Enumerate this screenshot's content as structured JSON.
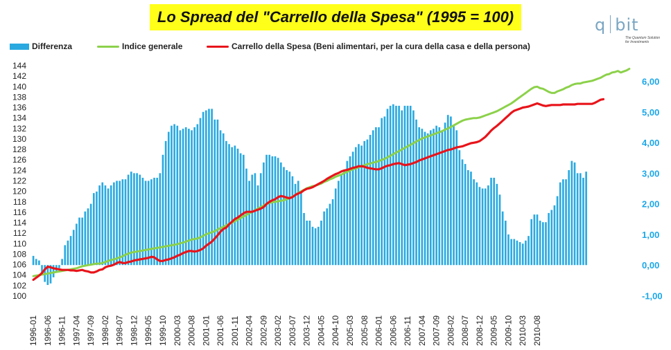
{
  "title": "Lo Spread del \"Carrello della Spesa\" (1995 = 100)",
  "logo": {
    "left": "q",
    "right": "bit",
    "tagline_1": "The Quantum Solution",
    "tagline_2": "for Investments"
  },
  "chart_data": {
    "type": "bar+line",
    "title": "Lo Spread del \"Carrello della Spesa\" (1995 = 100)",
    "legend": [
      {
        "name": "Differenza",
        "kind": "bar",
        "color": "#2aa9e0"
      },
      {
        "name": "Indice generale",
        "kind": "line",
        "color": "#8cd14a"
      },
      {
        "name": "Carrello della Spesa (Beni alimentari, per la cura della casa e della persona)",
        "kind": "line",
        "color": "#e8141a"
      }
    ],
    "legend_position": "top-left",
    "x_start": "1996-01",
    "x_end": "2011-01",
    "x_tick_labels": [
      "1996-01",
      "1996-06",
      "1996-11",
      "1997-04",
      "1997-09",
      "1998-02",
      "1998-07",
      "1998-12",
      "1999-05",
      "1999-10",
      "2000-03",
      "2000-08",
      "2001-01",
      "2001-06",
      "2001-11",
      "2002-04",
      "2002-09",
      "2003-02",
      "2003-07",
      "2003-12",
      "2004-05",
      "2004-10",
      "2005-03",
      "2005-08",
      "2006-01",
      "2006-06",
      "2006-11",
      "2007-04",
      "2007-09",
      "2008-02",
      "2008-07",
      "2008-12",
      "2009-05",
      "2009-10",
      "2010-03",
      "2010-08"
    ],
    "y_left": {
      "min": 100,
      "max": 144,
      "step": 2
    },
    "y_right": {
      "min": -1,
      "max": 6,
      "step": 1,
      "labels": [
        "-1,00",
        "0,00",
        "1,00",
        "2,00",
        "3,00",
        "4,00",
        "5,00",
        "6,00"
      ]
    },
    "grid": false,
    "indice_generale_monthly": [
      103.8,
      103.9,
      104.0,
      104.1,
      104.2,
      104.3,
      104.4,
      104.5,
      104.6,
      104.7,
      104.8,
      104.9,
      105.0,
      105.1,
      105.2,
      105.3,
      105.5,
      105.7,
      105.8,
      105.9,
      106.0,
      106.1,
      106.2,
      106.2,
      106.3,
      106.5,
      106.7,
      106.9,
      107.0,
      107.2,
      107.4,
      107.6,
      107.9,
      108.1,
      108.3,
      108.4,
      108.5,
      108.6,
      108.7,
      108.8,
      108.9,
      109.0,
      109.1,
      109.2,
      109.3,
      109.4,
      109.5,
      109.6,
      109.7,
      109.8,
      109.9,
      110.1,
      110.2,
      110.4,
      110.6,
      110.8,
      110.9,
      111.0,
      111.2,
      111.5,
      111.8,
      112.0,
      112.2,
      112.4,
      112.7,
      113.0,
      113.2,
      113.5,
      113.8,
      114.0,
      114.3,
      114.6,
      114.9,
      115.2,
      115.5,
      115.8,
      116.1,
      116.4,
      116.7,
      117.0,
      117.3,
      117.6,
      117.8,
      117.9,
      118.0,
      118.1,
      118.2,
      118.3,
      118.5,
      118.7,
      119.0,
      119.3,
      119.7,
      120.0,
      120.3,
      120.6,
      120.8,
      121.0,
      121.1,
      121.3,
      121.5,
      121.8,
      122.0,
      122.3,
      122.5,
      122.8,
      123.0,
      123.2,
      123.5,
      123.7,
      124.0,
      124.2,
      124.4,
      124.6,
      124.8,
      125.0,
      125.2,
      125.3,
      125.5,
      125.6,
      125.8,
      126.0,
      126.2,
      126.5,
      126.8,
      127.1,
      127.4,
      127.7,
      128.0,
      128.3,
      128.6,
      128.9,
      129.2,
      129.5,
      129.8,
      130.1,
      130.3,
      130.5,
      130.7,
      130.9,
      131.1,
      131.3,
      131.5,
      131.8,
      132.0,
      132.3,
      132.6,
      132.9,
      133.2,
      133.5,
      133.7,
      133.8,
      133.9,
      134.0,
      134.0,
      134.1,
      134.3,
      134.5,
      134.7,
      134.9,
      135.1,
      135.3,
      135.6,
      135.9,
      136.2,
      136.5,
      136.8,
      137.2,
      137.6,
      138.0,
      138.4,
      138.8,
      139.2,
      139.6,
      139.9,
      140.0,
      139.7,
      139.6,
      139.3,
      139.0,
      138.8,
      138.8,
      139.1,
      139.3,
      139.5,
      139.8,
      140.0,
      140.3,
      140.5,
      140.6,
      140.6,
      140.8,
      140.9,
      141.0,
      141.1,
      141.3,
      141.5,
      141.7,
      142.0,
      142.3,
      142.4,
      142.7,
      142.8,
      143.0,
      142.7,
      142.9,
      143.1,
      143.4
    ],
    "carrello_monthly": [
      103.1,
      103.5,
      103.9,
      104.4,
      105.1,
      105.6,
      105.5,
      105.3,
      105.2,
      105.1,
      105.0,
      105.0,
      105.0,
      104.9,
      104.9,
      104.8,
      104.9,
      105.0,
      104.8,
      104.7,
      104.5,
      104.5,
      104.7,
      105.0,
      105.1,
      105.5,
      105.7,
      105.8,
      106.0,
      106.3,
      106.5,
      106.3,
      106.3,
      106.5,
      106.6,
      106.8,
      106.9,
      107.0,
      107.1,
      107.2,
      107.3,
      107.5,
      107.4,
      107.0,
      106.7,
      106.7,
      106.9,
      107.0,
      107.2,
      107.4,
      107.7,
      107.9,
      108.2,
      108.4,
      108.6,
      108.6,
      108.5,
      108.6,
      108.8,
      109.1,
      109.6,
      110.0,
      110.4,
      111.0,
      111.6,
      112.3,
      112.8,
      113.1,
      113.7,
      114.2,
      114.7,
      115.0,
      115.4,
      115.8,
      116.1,
      116.1,
      116.1,
      116.3,
      116.5,
      116.7,
      117.0,
      117.6,
      118.0,
      118.3,
      118.5,
      118.9,
      119.1,
      119.0,
      118.8,
      118.7,
      118.9,
      119.3,
      119.6,
      119.8,
      120.2,
      120.5,
      120.6,
      120.8,
      121.1,
      121.4,
      121.7,
      122.0,
      122.4,
      122.7,
      123.0,
      123.3,
      123.5,
      123.8,
      124.0,
      124.1,
      124.3,
      124.5,
      124.6,
      124.8,
      124.8,
      124.7,
      124.5,
      124.4,
      124.3,
      124.2,
      124.2,
      124.4,
      124.7,
      124.9,
      125.0,
      125.2,
      125.3,
      125.4,
      125.2,
      125.0,
      125.1,
      125.2,
      125.4,
      125.6,
      125.9,
      126.1,
      126.3,
      126.5,
      126.7,
      126.9,
      127.1,
      127.3,
      127.5,
      127.7,
      127.9,
      128.0,
      128.2,
      128.4,
      128.5,
      128.6,
      128.8,
      129.0,
      129.2,
      129.3,
      129.4,
      129.6,
      130.0,
      130.4,
      131.0,
      131.6,
      132.1,
      132.5,
      133.0,
      133.5,
      134.0,
      134.5,
      135.0,
      135.4,
      135.6,
      135.8,
      136.0,
      136.1,
      136.2,
      136.4,
      136.6,
      136.8,
      136.6,
      136.4,
      136.3,
      136.4,
      136.5,
      136.5,
      136.5,
      136.5,
      136.6,
      136.6,
      136.6,
      136.6,
      136.6,
      136.7,
      136.7,
      136.7,
      136.7,
      136.7,
      136.7,
      136.9,
      137.2,
      137.5,
      137.6
    ],
    "differenza_monthly": [
      0.3,
      0.2,
      0.15,
      -0.3,
      -0.55,
      -0.65,
      -0.6,
      -0.4,
      -0.25,
      -0.1,
      0.2,
      0.65,
      0.8,
      0.95,
      1.15,
      1.35,
      1.55,
      1.55,
      1.75,
      1.85,
      2.0,
      2.35,
      2.4,
      2.6,
      2.7,
      2.6,
      2.5,
      2.6,
      2.7,
      2.75,
      2.75,
      2.8,
      2.8,
      2.95,
      3.05,
      3.0,
      3.0,
      2.95,
      2.85,
      2.75,
      2.75,
      2.8,
      2.85,
      2.85,
      3.0,
      3.6,
      4.05,
      4.35,
      4.55,
      4.6,
      4.55,
      4.4,
      4.45,
      4.5,
      4.45,
      4.4,
      4.5,
      4.6,
      4.8,
      5.0,
      5.05,
      5.1,
      5.1,
      4.75,
      4.75,
      4.4,
      4.3,
      4.05,
      3.95,
      3.85,
      3.9,
      3.8,
      3.65,
      3.6,
      3.15,
      2.75,
      2.95,
      3.0,
      2.6,
      3.0,
      3.35,
      3.6,
      3.6,
      3.55,
      3.55,
      3.5,
      3.35,
      3.2,
      3.1,
      3.05,
      2.9,
      2.65,
      2.75,
      2.4,
      1.7,
      1.45,
      1.45,
      1.25,
      1.2,
      1.25,
      1.45,
      1.75,
      1.85,
      2.0,
      2.15,
      2.5,
      2.75,
      2.95,
      3.1,
      3.4,
      3.55,
      3.7,
      3.85,
      3.95,
      3.9,
      4.05,
      4.1,
      4.25,
      4.4,
      4.5,
      4.5,
      4.8,
      4.85,
      5.1,
      5.2,
      5.25,
      5.2,
      5.2,
      5.05,
      5.2,
      5.2,
      5.2,
      5.05,
      4.75,
      4.5,
      4.45,
      4.35,
      4.3,
      4.4,
      4.45,
      4.55,
      4.5,
      4.4,
      4.65,
      4.9,
      4.85,
      4.55,
      4.4,
      3.75,
      3.45,
      3.3,
      3.1,
      3.05,
      2.8,
      2.7,
      2.55,
      2.5,
      2.5,
      2.6,
      2.85,
      2.85,
      2.65,
      2.3,
      1.75,
      1.45,
      1.0,
      0.85,
      0.85,
      0.8,
      0.75,
      0.7,
      0.8,
      0.95,
      1.5,
      1.65,
      1.65,
      1.45,
      1.4,
      1.4,
      1.7,
      1.8,
      1.95,
      2.25,
      2.7,
      2.8,
      2.8,
      3.1,
      3.4,
      3.35,
      3.0,
      3.0,
      2.85,
      3.05
    ]
  },
  "legend_labels": {
    "differenza": "Differenza",
    "indice": "Indice generale",
    "carrello": "Carrello della Spesa (Beni alimentari, per la cura della casa e della persona)"
  }
}
